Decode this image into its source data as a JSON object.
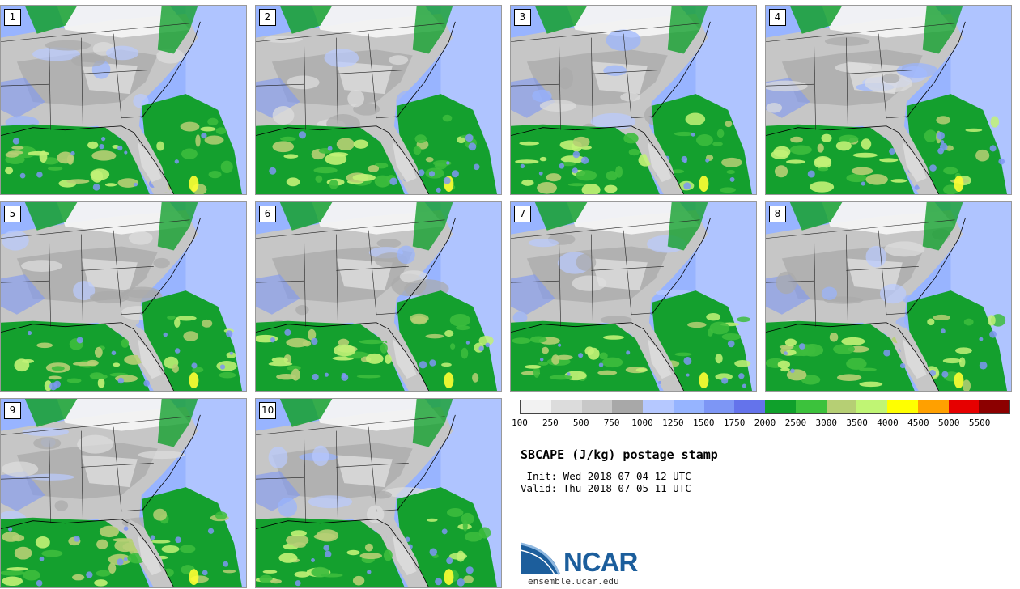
{
  "panels": [
    {
      "label": "1"
    },
    {
      "label": "2"
    },
    {
      "label": "3"
    },
    {
      "label": "4"
    },
    {
      "label": "5"
    },
    {
      "label": "6"
    },
    {
      "label": "7"
    },
    {
      "label": "8"
    },
    {
      "label": "9"
    },
    {
      "label": "10"
    }
  ],
  "legend": {
    "colors": [
      "#f2f2f2",
      "#dcdcdc",
      "#c8c8c8",
      "#a8a8a8",
      "#b5c8ff",
      "#96b4ff",
      "#7d96f5",
      "#6473eb",
      "#0fa02b",
      "#3cc23c",
      "#b6cf74",
      "#c0f574",
      "#ffff00",
      "#ffa000",
      "#e60000",
      "#8c0000"
    ],
    "labels": [
      "100",
      "250",
      "500",
      "750",
      "1000",
      "1250",
      "1500",
      "1750",
      "2000",
      "2500",
      "3000",
      "3500",
      "4000",
      "4500",
      "5000",
      "5500"
    ]
  },
  "title": "SBCAPE (J/kg) postage stamp",
  "init_line": " Init: Wed 2018-07-04 12 UTC",
  "valid_line": "Valid: Thu 2018-07-05 11 UTC",
  "logo": {
    "name": "NCAR",
    "url": "ensemble.ucar.edu"
  }
}
